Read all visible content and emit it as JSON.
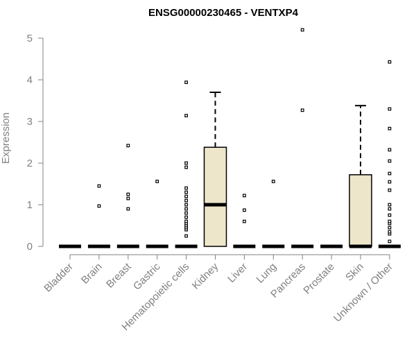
{
  "chart_data": {
    "type": "boxplot",
    "title": "ENSG00000230465 - VENTXP4",
    "xlabel": "",
    "ylabel": "Expression",
    "ylim": [
      0,
      5
    ],
    "yticks": [
      0,
      1,
      2,
      3,
      4,
      5
    ],
    "grid": false,
    "box_color": "#ede6ca",
    "categories": [
      "Bladder",
      "Brain",
      "Breast",
      "Gastric",
      "Hematopoietic cells",
      "Kidney",
      "Liver",
      "Lung",
      "Pancreas",
      "Prostate",
      "Skin",
      "Unknown / Other"
    ],
    "boxes": [
      {
        "category": "Bladder",
        "min": 0,
        "q1": 0,
        "median": 0,
        "q3": 0,
        "max": 0,
        "outliers": []
      },
      {
        "category": "Brain",
        "min": 0,
        "q1": 0,
        "median": 0,
        "q3": 0,
        "max": 0,
        "outliers": [
          0.97,
          1.45
        ]
      },
      {
        "category": "Breast",
        "min": 0,
        "q1": 0,
        "median": 0,
        "q3": 0,
        "max": 0,
        "outliers": [
          0.9,
          1.15,
          1.25,
          2.42
        ]
      },
      {
        "category": "Gastric",
        "min": 0,
        "q1": 0,
        "median": 0,
        "q3": 0,
        "max": 0,
        "outliers": [
          1.56
        ]
      },
      {
        "category": "Hematopoietic cells",
        "min": 0,
        "q1": 0,
        "median": 0,
        "q3": 0,
        "max": 0,
        "outliers": [
          0.25,
          0.4,
          0.45,
          0.5,
          0.55,
          0.6,
          0.7,
          0.8,
          0.9,
          1.0,
          1.1,
          1.2,
          1.3,
          1.4,
          1.9,
          2.0,
          3.14,
          3.94
        ]
      },
      {
        "category": "Kidney",
        "min": 0,
        "q1": 0,
        "median": 1.0,
        "q3": 2.38,
        "max": 3.7,
        "outliers": []
      },
      {
        "category": "Liver",
        "min": 0,
        "q1": 0,
        "median": 0,
        "q3": 0,
        "max": 0,
        "outliers": [
          0.6,
          0.87,
          1.22
        ]
      },
      {
        "category": "Lung",
        "min": 0,
        "q1": 0,
        "median": 0,
        "q3": 0,
        "max": 0,
        "outliers": [
          1.56
        ]
      },
      {
        "category": "Pancreas",
        "min": 0,
        "q1": 0,
        "median": 0,
        "q3": 0,
        "max": 0,
        "outliers": [
          3.27,
          5.2
        ]
      },
      {
        "category": "Prostate",
        "min": 0,
        "q1": 0,
        "median": 0,
        "q3": 0,
        "max": 0,
        "outliers": []
      },
      {
        "category": "Skin",
        "min": 0,
        "q1": 0,
        "median": 0,
        "q3": 1.72,
        "max": 3.38,
        "outliers": []
      },
      {
        "category": "Unknown / Other",
        "min": 0,
        "q1": 0,
        "median": 0,
        "q3": 0,
        "max": 0,
        "outliers": [
          0.12,
          0.3,
          0.35,
          0.45,
          0.55,
          0.6,
          0.75,
          0.9,
          1.0,
          1.35,
          1.55,
          1.75,
          2.05,
          2.32,
          2.83,
          3.3,
          4.43
        ]
      }
    ]
  }
}
